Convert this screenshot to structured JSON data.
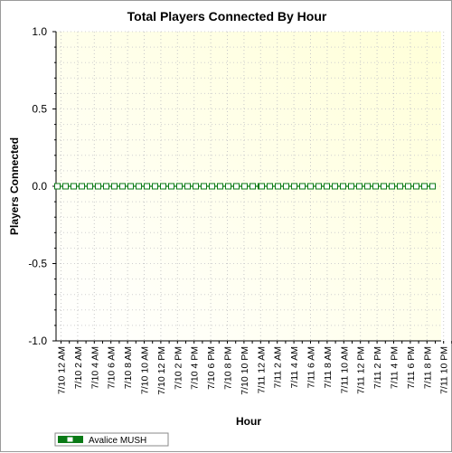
{
  "chart_data": {
    "type": "line",
    "title": "Total Players Connected By Hour",
    "xlabel": "Hour",
    "ylabel": "Players Connected",
    "ylim": [
      -1.0,
      1.0
    ],
    "yticks": [
      "1.0",
      "0.5",
      "0.0",
      "-0.5",
      "-1.0"
    ],
    "ytick_values": [
      1.0,
      0.5,
      0.0,
      -0.5,
      -1.0
    ],
    "grid": true,
    "legend_position": "bottom-left",
    "categories": [
      "7/10 12 AM",
      "7/10 2 AM",
      "7/10 4 AM",
      "7/10 6 AM",
      "7/10 8 AM",
      "7/10 10 AM",
      "7/10 12 PM",
      "7/10 2 PM",
      "7/10 4 PM",
      "7/10 6 PM",
      "7/10 8 PM",
      "7/10 10 PM",
      "7/11 12 AM",
      "7/11 2 AM",
      "7/11 4 AM",
      "7/11 6 AM",
      "7/11 8 AM",
      "7/11 10 AM",
      "7/11 12 PM",
      "7/11 2 PM",
      "7/11 4 PM",
      "7/11 6 PM",
      "7/11 8 PM",
      "7/11 10 PM"
    ],
    "series": [
      {
        "name": "Avalice MUSH",
        "color": "#0a7a16",
        "segments": [
          {
            "values": [
              0,
              0,
              0,
              0,
              0,
              0,
              0,
              0,
              0,
              0,
              0,
              0,
              0,
              0,
              0,
              0,
              0,
              0,
              0,
              0,
              0,
              0,
              0,
              0,
              0,
              0
            ]
          },
          {
            "values": [
              0,
              0,
              0,
              0,
              0,
              0,
              0,
              0,
              0,
              0,
              0,
              0,
              0,
              0,
              0,
              0,
              0,
              0,
              0,
              0,
              0,
              0
            ]
          }
        ]
      }
    ],
    "plot_background": [
      "#ffffff",
      "#ffffd8"
    ]
  }
}
